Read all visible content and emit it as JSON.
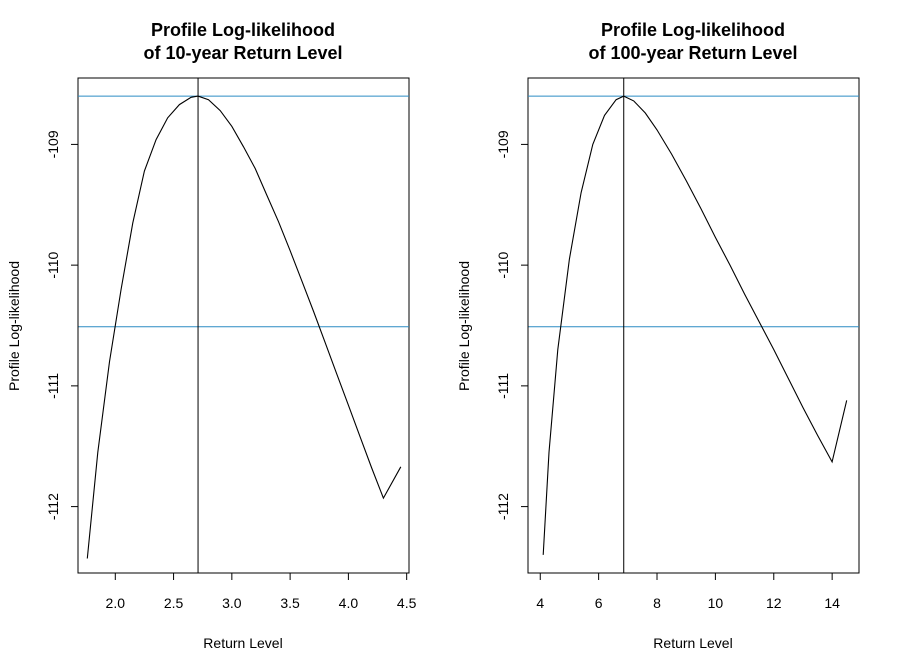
{
  "chart_data": [
    {
      "type": "line",
      "title_line1": "Profile Log-likelihood",
      "title_line2": "of 10-year Return Level",
      "xlabel": "Return Level",
      "ylabel": "Profile Log-likelihood",
      "xlim": [
        1.68,
        4.52
      ],
      "ylim": [
        -112.55,
        -108.45
      ],
      "xticks": [
        "2.0",
        "2.5",
        "3.0",
        "3.5",
        "4.0",
        "4.5"
      ],
      "yticks": [
        "-109",
        "-110",
        "-111",
        "-112"
      ],
      "hlines": [
        -108.6,
        -110.51
      ],
      "vline": 2.71,
      "hline_color": "#2b8cc4",
      "line_color": "#000000",
      "x": [
        1.76,
        1.85,
        1.95,
        2.05,
        2.15,
        2.25,
        2.35,
        2.45,
        2.55,
        2.65,
        2.71,
        2.8,
        2.9,
        3.0,
        3.1,
        3.2,
        3.3,
        3.4,
        3.5,
        3.6,
        3.7,
        3.8,
        3.9,
        4.0,
        4.1,
        4.2,
        4.3,
        4.45
      ],
      "y": [
        -112.43,
        -111.55,
        -110.8,
        -110.2,
        -109.65,
        -109.22,
        -108.96,
        -108.78,
        -108.67,
        -108.61,
        -108.6,
        -108.63,
        -108.72,
        -108.85,
        -109.02,
        -109.2,
        -109.42,
        -109.64,
        -109.88,
        -110.13,
        -110.38,
        -110.64,
        -110.9,
        -111.16,
        -111.42,
        -111.68,
        -111.93,
        -111.67
      ]
    },
    {
      "type": "line",
      "title_line1": "Profile Log-likelihood",
      "title_line2": "of 100-year Return Level",
      "xlabel": "Return Level",
      "ylabel": "Profile Log-likelihood",
      "xlim": [
        3.58,
        14.92
      ],
      "ylim": [
        -112.55,
        -108.45
      ],
      "xticks": [
        "4",
        "6",
        "8",
        "10",
        "12",
        "14"
      ],
      "yticks": [
        "-109",
        "-110",
        "-111",
        "-112"
      ],
      "hlines": [
        -108.6,
        -110.51
      ],
      "vline": 6.86,
      "hline_color": "#2b8cc4",
      "line_color": "#000000",
      "x": [
        4.1,
        4.3,
        4.6,
        5.0,
        5.4,
        5.8,
        6.2,
        6.6,
        6.86,
        7.2,
        7.6,
        8.0,
        8.5,
        9.0,
        9.5,
        10.0,
        10.5,
        11.0,
        11.5,
        12.0,
        12.5,
        13.0,
        13.5,
        14.0,
        14.5
      ],
      "y": [
        -112.4,
        -111.55,
        -110.7,
        -109.95,
        -109.4,
        -109.0,
        -108.76,
        -108.63,
        -108.6,
        -108.64,
        -108.74,
        -108.88,
        -109.08,
        -109.3,
        -109.53,
        -109.77,
        -110.0,
        -110.24,
        -110.47,
        -110.7,
        -110.94,
        -111.18,
        -111.41,
        -111.63,
        -111.12
      ]
    }
  ]
}
